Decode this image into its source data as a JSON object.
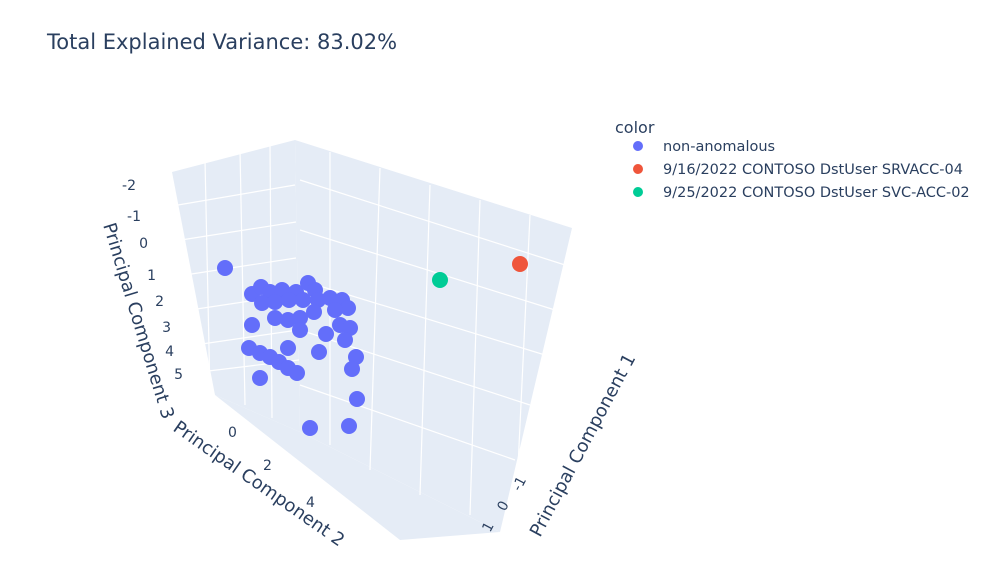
{
  "chart_data": {
    "type": "scatter",
    "title": "Total Explained Variance: 83.02%",
    "legend_title": "color",
    "legend_position": "top-right",
    "axes": {
      "x": {
        "title": "Principal Component 1",
        "tick_labels": [
          "-1",
          "0",
          "1"
        ]
      },
      "y": {
        "title": "Principal Component 2",
        "tick_labels": [
          "0",
          "2",
          "4"
        ]
      },
      "z": {
        "title": "Principal Component 3",
        "tick_labels": [
          "-2",
          "-1",
          "0",
          "1",
          "2",
          "3",
          "4",
          "5"
        ]
      }
    },
    "series": [
      {
        "name": "non-anomalous",
        "color": "#636efa"
      },
      {
        "name": "9/16/2022 CONTOSO DstUser SRVACC-04",
        "color": "#ef553b"
      },
      {
        "name": "9/25/2022 CONTOSO DstUser SVC-ACC-02",
        "color": "#00cc96"
      }
    ]
  }
}
